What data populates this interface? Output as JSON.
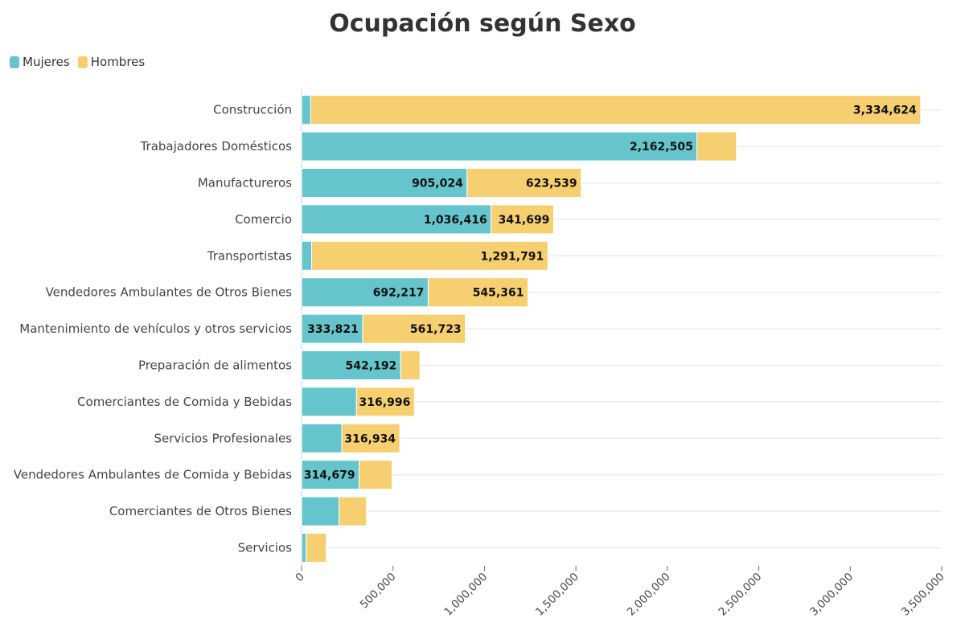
{
  "chart_data": {
    "type": "bar",
    "orientation": "horizontal",
    "stacked": true,
    "title": "Ocupación según Sexo",
    "xlabel": "",
    "ylabel": "",
    "xlim": [
      0,
      3500000
    ],
    "x_ticks": [
      "0",
      "500,000",
      "1,000,000",
      "1,500,000",
      "2,000,000",
      "2,500,000",
      "3,000,000",
      "3,500,000"
    ],
    "grid": true,
    "legend_position": "top-left",
    "categories": [
      "Construcción",
      "Trabajadores Domésticos",
      "Manufactureros",
      "Comercio",
      "Transportistas",
      "Vendedores Ambulantes de Otros Bienes",
      "Mantenimiento de vehículos y otros servicios",
      "Preparación de alimentos",
      "Comerciantes de Comida y Bebidas",
      "Servicios Profesionales",
      "Vendedores Ambulantes de Comida y Bebidas",
      "Comerciantes de Otros Bienes",
      "Servicios"
    ],
    "series": [
      {
        "name": "Mujeres",
        "color": "#66c5cc",
        "values": [
          50000,
          2162505,
          905024,
          1036416,
          55000,
          692217,
          333821,
          542192,
          300000,
          220000,
          314679,
          205000,
          25000
        ],
        "labels": [
          "",
          "2,162,505",
          "905,024",
          "1,036,416",
          "",
          "692,217",
          "333,821",
          "542,192",
          "",
          "",
          "314,679",
          "",
          ""
        ]
      },
      {
        "name": "Hombres",
        "color": "#f6cf71",
        "values": [
          3334624,
          215000,
          623539,
          341699,
          1291791,
          545361,
          561723,
          105000,
          316996,
          316934,
          180000,
          150000,
          110000
        ],
        "labels": [
          "3,334,624",
          "",
          "623,539",
          "341,699",
          "1,291,791",
          "545,361",
          "561,723",
          "",
          "316,996",
          "316,934",
          "",
          "",
          ""
        ]
      }
    ]
  }
}
